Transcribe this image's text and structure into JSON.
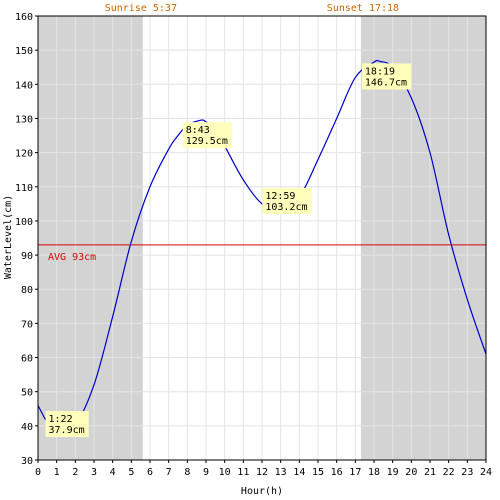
{
  "chart_data": {
    "type": "line",
    "xlabel": "Hour(h)",
    "ylabel": "WaterLevel(cm)",
    "xlim": [
      0,
      24
    ],
    "ylim": [
      30,
      160
    ],
    "x_ticks": [
      0,
      1,
      2,
      3,
      4,
      5,
      6,
      7,
      8,
      9,
      10,
      11,
      12,
      13,
      14,
      15,
      16,
      17,
      18,
      19,
      20,
      21,
      22,
      23,
      24
    ],
    "y_ticks": [
      30,
      40,
      50,
      60,
      70,
      80,
      90,
      100,
      110,
      120,
      130,
      140,
      150,
      160
    ],
    "grid": true,
    "sunrise": {
      "hour": 5.617,
      "label": "Sunrise 5:37"
    },
    "sunset": {
      "hour": 17.3,
      "label": "Sunset 17:18"
    },
    "average": {
      "value": 93,
      "label": "AVG 93cm"
    },
    "series": [
      {
        "x": [
          0,
          0.5,
          1,
          1.367,
          2,
          3,
          4,
          5,
          6,
          7,
          7.5,
          8,
          8.717,
          9,
          9.5,
          10,
          11,
          12,
          12.983,
          14,
          15,
          16,
          17,
          18,
          18.317,
          19,
          20,
          21,
          22,
          23,
          24
        ],
        "y": [
          46,
          41,
          38.5,
          37.9,
          40,
          52,
          72,
          94,
          110,
          121,
          125,
          128,
          129.5,
          129,
          127,
          122,
          112,
          105,
          103.2,
          107,
          118,
          130,
          142,
          146.5,
          146.7,
          145,
          136,
          120,
          96,
          77,
          61
        ]
      }
    ],
    "annotations": [
      {
        "x": 1.367,
        "y": 37.9,
        "time": "1:22",
        "value": "37.9cm"
      },
      {
        "x": 8.717,
        "y": 129.5,
        "time": "8:43",
        "value": "129.5cm"
      },
      {
        "x": 12.983,
        "y": 103.2,
        "time": "12:59",
        "value": "103.2cm"
      },
      {
        "x": 18.317,
        "y": 146.7,
        "time": "18:19",
        "value": "146.7cm"
      }
    ],
    "colors": {
      "night": "#d3d3d3",
      "grid": "#e4e4e4",
      "curve": "#0000cc",
      "average": "#dd0000",
      "label_bg": "#ffffbb",
      "sun_text": "#cc6600"
    }
  }
}
